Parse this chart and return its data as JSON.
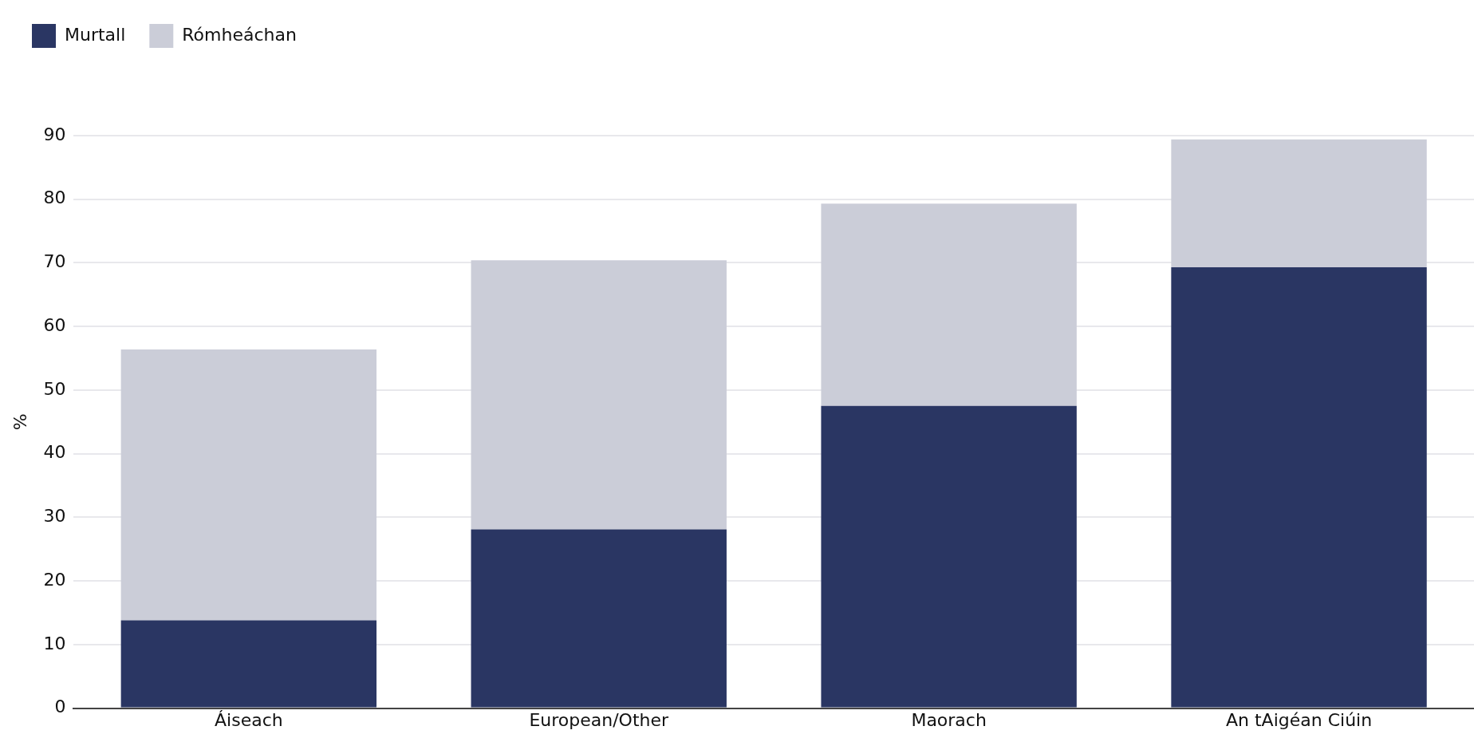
{
  "chart_data": {
    "type": "bar",
    "stacked": true,
    "ylabel": "%",
    "categories": [
      "Áiseach",
      "European/Other",
      "Maorach",
      "An tAigéan Ciúin"
    ],
    "series": [
      {
        "name": "Murtall",
        "color": "#2a3663",
        "values": [
          13.8,
          28.1,
          47.5,
          69.3
        ]
      },
      {
        "name": "Rómheáchan",
        "color": "#cbcdd8",
        "values": [
          42.6,
          42.3,
          31.8,
          20.1
        ]
      }
    ],
    "ylim": [
      0,
      90
    ],
    "yticks": [
      0,
      10,
      20,
      30,
      40,
      50,
      60,
      70,
      80,
      90
    ],
    "grid": "y",
    "legend": "top left"
  }
}
